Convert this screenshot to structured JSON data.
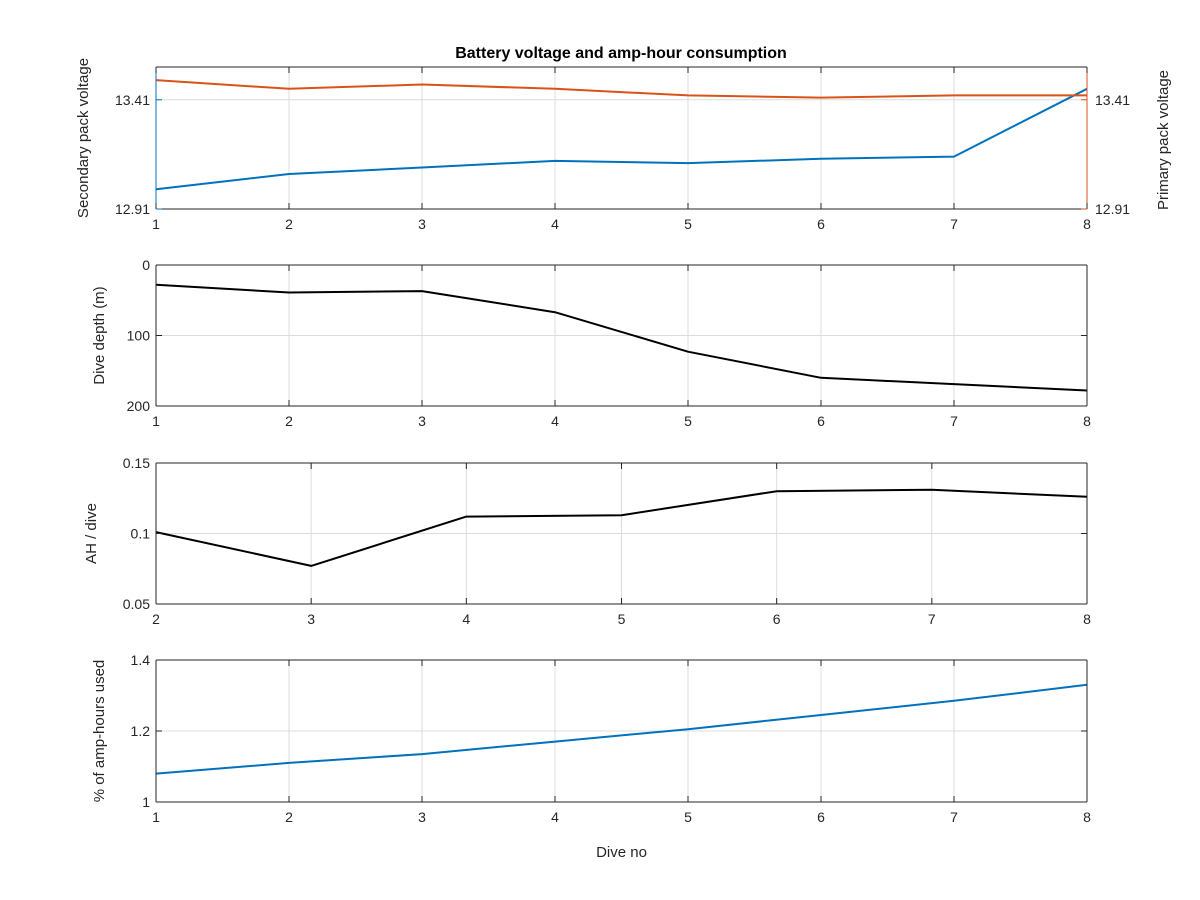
{
  "figure": {
    "title": "Battery voltage and amp-hour consumption"
  },
  "colors": {
    "secondary": "#0072BD",
    "primary": "#D95319",
    "black": "#000000",
    "axis": "#262626",
    "grid": "#dcdcdc"
  },
  "chart_data": [
    {
      "type": "line",
      "title": "Battery voltage and amp-hour consumption",
      "xlabel": "",
      "ylabel": "Secondary pack voltage",
      "ylabel_right": "Primary pack voltage",
      "xlim": [
        1,
        8
      ],
      "ylim": [
        12.91,
        13.56
      ],
      "x_ticks": [
        1,
        2,
        3,
        4,
        5,
        6,
        7,
        8
      ],
      "y_ticks": [
        12.91,
        13.41
      ],
      "y_ticks_right": [
        12.91,
        13.41
      ],
      "grid": true,
      "series": [
        {
          "name": "Secondary pack voltage",
          "axis": "left",
          "color": "#0072BD",
          "x": [
            1,
            2,
            3,
            4,
            5,
            6,
            7,
            8
          ],
          "values": [
            13.0,
            13.07,
            13.1,
            13.13,
            13.12,
            13.14,
            13.15,
            13.46
          ]
        },
        {
          "name": "Primary pack voltage",
          "axis": "right",
          "color": "#D95319",
          "x": [
            1,
            2,
            3,
            4,
            5,
            6,
            7,
            8
          ],
          "values": [
            13.5,
            13.46,
            13.48,
            13.46,
            13.43,
            13.42,
            13.43,
            13.43
          ]
        }
      ]
    },
    {
      "type": "line",
      "xlabel": "",
      "ylabel": "Dive depth (m)",
      "xlim": [
        1,
        8
      ],
      "ylim": [
        0,
        200
      ],
      "y_reversed": true,
      "x_ticks": [
        1,
        2,
        3,
        4,
        5,
        6,
        7,
        8
      ],
      "y_ticks": [
        0,
        100,
        200
      ],
      "grid": true,
      "series": [
        {
          "color": "#000000",
          "x": [
            1,
            2,
            3,
            4,
            5,
            6,
            7,
            8
          ],
          "values": [
            28,
            39,
            37,
            67,
            123,
            160,
            169,
            178
          ]
        }
      ]
    },
    {
      "type": "line",
      "xlabel": "",
      "ylabel": "AH / dive",
      "xlim": [
        2,
        8
      ],
      "ylim": [
        0.05,
        0.15
      ],
      "x_ticks": [
        2,
        3,
        4,
        5,
        6,
        7,
        8
      ],
      "y_ticks": [
        0.05,
        0.1,
        0.15
      ],
      "grid": true,
      "series": [
        {
          "color": "#000000",
          "x": [
            2,
            3,
            4,
            5,
            6,
            7,
            8
          ],
          "values": [
            0.101,
            0.077,
            0.112,
            0.113,
            0.13,
            0.131,
            0.126
          ]
        }
      ]
    },
    {
      "type": "line",
      "xlabel": "Dive no",
      "ylabel": "% of amp-hours used",
      "xlim": [
        1,
        8
      ],
      "ylim": [
        1,
        1.4
      ],
      "x_ticks": [
        1,
        2,
        3,
        4,
        5,
        6,
        7,
        8
      ],
      "y_ticks": [
        1,
        1.2,
        1.4
      ],
      "grid": true,
      "series": [
        {
          "color": "#0072BD",
          "x": [
            1,
            2,
            3,
            4,
            5,
            6,
            7,
            8
          ],
          "values": [
            1.08,
            1.11,
            1.135,
            1.17,
            1.205,
            1.245,
            1.285,
            1.33
          ]
        }
      ]
    }
  ]
}
